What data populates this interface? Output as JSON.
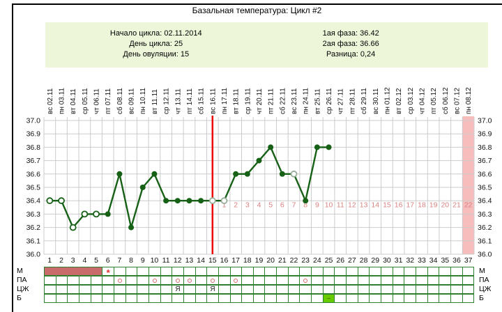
{
  "title": "Базальная температура: Цикл #2",
  "info": {
    "left": [
      {
        "label": "Начало цикла:",
        "value": "02.11.2014"
      },
      {
        "label": "День цикла:",
        "value": "25"
      },
      {
        "label": "День овуляции:",
        "value": "15"
      }
    ],
    "right": [
      {
        "label": "1ая фаза:",
        "value": "36.42"
      },
      {
        "label": "2ая фаза:",
        "value": "36.66"
      },
      {
        "label": "Разница:",
        "value": "0,24"
      }
    ]
  },
  "chart_data": {
    "type": "line",
    "title": "Базальная температура: Цикл #2",
    "ylim": [
      36.0,
      37.0
    ],
    "ytick_labels": [
      "37.0",
      "36.9",
      "36.8",
      "36.7",
      "36.6",
      "36.5",
      "36.4",
      "36.3",
      "36.2",
      "36.1",
      "36.0"
    ],
    "days_total": 37,
    "date_labels": [
      "вс 02.11",
      "пн 03.11",
      "вт 04.11",
      "ср 05.11",
      "чт 06.11",
      "пт 07.11",
      "сб 08.11",
      "вс 09.11",
      "пн 10.11",
      "вт 11.11",
      "ср 12.11",
      "чт 13.11",
      "пт 14.11",
      "сб 15.11",
      "вс 16.11",
      "пн 17.11",
      "вт 18.11",
      "ср 19.11",
      "чт 20.11",
      "пт 21.11",
      "сб 22.11",
      "вс 23.11",
      "пн 24.11",
      "вт 25.11",
      "ср 26.11",
      "чт 27.11",
      "пт 28.11",
      "сб 29.11",
      "вс 30.11",
      "пн 01.12",
      "вт 02.12",
      "ср 03.12",
      "чт 04.12",
      "пт 05.12",
      "сб 06.12",
      "вс 07.12",
      "пн 08.12"
    ],
    "series": [
      {
        "name": "температура",
        "points": [
          {
            "day": 1,
            "temp": 36.4,
            "marker": "open"
          },
          {
            "day": 2,
            "temp": 36.4,
            "marker": "open"
          },
          {
            "day": 3,
            "temp": 36.2,
            "marker": "open"
          },
          {
            "day": 4,
            "temp": 36.3,
            "marker": "open"
          },
          {
            "day": 5,
            "temp": 36.3,
            "marker": "open"
          },
          {
            "day": 6,
            "temp": 36.3,
            "marker": "filled"
          },
          {
            "day": 7,
            "temp": 36.6,
            "marker": "filled"
          },
          {
            "day": 8,
            "temp": 36.2,
            "marker": "filled"
          },
          {
            "day": 9,
            "temp": 36.5,
            "marker": "filled"
          },
          {
            "day": 10,
            "temp": 36.6,
            "marker": "filled"
          },
          {
            "day": 11,
            "temp": 36.4,
            "marker": "filled"
          },
          {
            "day": 12,
            "temp": 36.4,
            "marker": "filled"
          },
          {
            "day": 13,
            "temp": 36.4,
            "marker": "filled"
          },
          {
            "day": 14,
            "temp": 36.4,
            "marker": "filled"
          },
          {
            "day": 15,
            "temp": 36.4,
            "marker": "open-gray"
          },
          {
            "day": 16,
            "temp": 36.4,
            "marker": "open-gray"
          },
          {
            "day": 17,
            "temp": 36.6,
            "marker": "filled"
          },
          {
            "day": 18,
            "temp": 36.6,
            "marker": "filled"
          },
          {
            "day": 19,
            "temp": 36.7,
            "marker": "filled"
          },
          {
            "day": 20,
            "temp": 36.8,
            "marker": "filled"
          },
          {
            "day": 21,
            "temp": 36.6,
            "marker": "filled"
          },
          {
            "day": 22,
            "temp": 36.6,
            "marker": "open-gray"
          },
          {
            "day": 23,
            "temp": 36.4,
            "marker": "filled"
          },
          {
            "day": 24,
            "temp": 36.8,
            "marker": "filled"
          },
          {
            "day": 25,
            "temp": 36.8,
            "marker": "filled"
          }
        ]
      }
    ],
    "ovulation_line_day": 15,
    "post_ovulation_numbers": {
      "start_day": 16,
      "count": 22,
      "at_temp": 36.4
    },
    "highlight_column": 37
  },
  "symptom_rows": [
    {
      "label": "М",
      "fill_days": [
        1,
        2,
        3,
        4,
        5
      ],
      "star_day": 6
    },
    {
      "label": "ПА",
      "circle_days": [
        7,
        10,
        12,
        13,
        15,
        17,
        23
      ]
    },
    {
      "label": "ЦЖ",
      "ya_text": "Я",
      "ya_days": [
        12,
        15
      ]
    },
    {
      "label": "Б",
      "minus_day": 25,
      "minus_text": "–"
    }
  ],
  "colors": {
    "line_green": "#176117",
    "marker_gray_green": "#97ad97",
    "grid": "#cbcbcb",
    "red_line": "#ee0000",
    "post_number_red": "#d98383",
    "pink_column": "#f7bcbc",
    "info_bg": "#eef6da",
    "table_border": "#2e8030",
    "menses_fill": "#c96b6b",
    "b_green": "#66cc00"
  }
}
